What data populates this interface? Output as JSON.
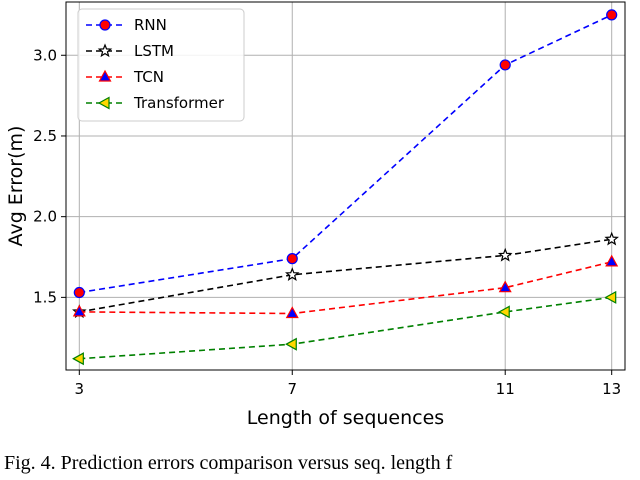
{
  "chart_data": {
    "type": "line",
    "xlabel": "Length of sequences",
    "ylabel": "Avg Error(m)",
    "x": [
      3,
      7,
      11,
      13
    ],
    "xticks": [
      "3",
      "7",
      "11",
      "13"
    ],
    "yticks": [
      "1.5",
      "2.0",
      "2.5",
      "3.0"
    ],
    "ytick_values": [
      1.5,
      2.0,
      2.5,
      3.0
    ],
    "xlim": [
      2.75,
      13.25
    ],
    "ylim": [
      1.05,
      3.33
    ],
    "grid": true,
    "legend_position": "top-left",
    "series": [
      {
        "name": "RNN",
        "values": [
          1.53,
          1.74,
          2.94,
          3.25
        ],
        "color": "#0000ff",
        "marker": "circle",
        "marker_fill": "#ff0000",
        "marker_edge": "#0000ff"
      },
      {
        "name": "LSTM",
        "values": [
          1.41,
          1.64,
          1.76,
          1.86
        ],
        "color": "#000000",
        "marker": "star",
        "marker_fill": "#ffffff",
        "marker_edge": "#000000"
      },
      {
        "name": "TCN",
        "values": [
          1.41,
          1.4,
          1.56,
          1.72
        ],
        "color": "#ff0000",
        "marker": "triangle-up",
        "marker_fill": "#0000ff",
        "marker_edge": "#ff0000"
      },
      {
        "name": "Transformer",
        "values": [
          1.12,
          1.21,
          1.41,
          1.5
        ],
        "color": "#008000",
        "marker": "triangle-left",
        "marker_fill": "#ffd700",
        "marker_edge": "#008000"
      }
    ]
  },
  "caption": "Fig. 4.   Prediction errors comparison versus seq. length f"
}
